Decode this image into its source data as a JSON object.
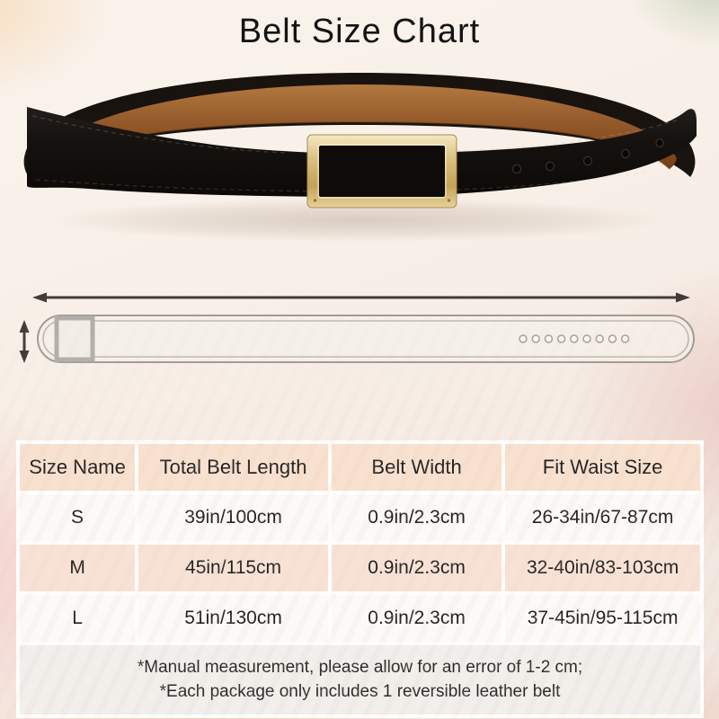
{
  "title": "Belt Size Chart",
  "palette": {
    "header_bg": "#f8e1d1",
    "row_bg": "#fbfaf9",
    "row_alt_bg": "#f8e2d6",
    "notes_bg": "#f1efec",
    "strap_black": "#18140f",
    "lining_brown": "#8d5224",
    "buckle_gold": "#d9bf82",
    "diagram_line_grey": "#a19b94",
    "arrow_dark": "#413c39"
  },
  "photo": {
    "description": "reversible black leather belt looped, tan lining inside, gold rectangular buckle, punched holes on right",
    "hole_count": 5
  },
  "diagram": {
    "description": "flat belt outline with buckle at left and 9 holes at right",
    "length_arrow": "total belt length",
    "width_arrow": "belt width",
    "hole_count": 9
  },
  "chart_data": {
    "type": "table",
    "title": "Belt Size Chart",
    "columns": [
      "Size Name",
      "Total Belt Length",
      "Belt Width",
      "Fit Waist Size"
    ],
    "rows": [
      [
        "S",
        "39in/100cm",
        "0.9in/2.3cm",
        "26-34in/67-87cm"
      ],
      [
        "M",
        "45in/115cm",
        "0.9in/2.3cm",
        "32-40in/83-103cm"
      ],
      [
        "L",
        "51in/130cm",
        "0.9in/2.3cm",
        "37-45in/95-115cm"
      ]
    ]
  },
  "notes": [
    "*Manual measurement, please allow for an error of 1-2 cm;",
    "*Each package only includes 1 reversible leather belt"
  ]
}
